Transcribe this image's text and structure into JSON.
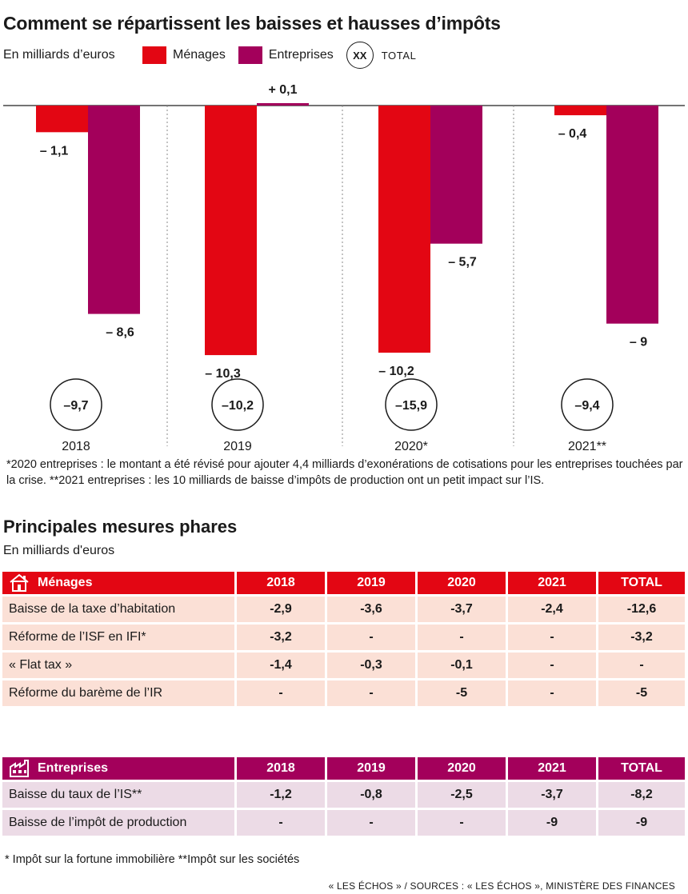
{
  "header": {
    "title": "Comment se répartissent les baisses et hausses d’impôts",
    "unit": "En milliards d’euros",
    "legend_menages": "Ménages",
    "legend_entreprises": "Entreprises",
    "legend_total_badge": "XX",
    "legend_total_label": "TOTAL"
  },
  "colors": {
    "menages": "#e30613",
    "entreprises": "#a3005b",
    "menages_light": "#fbe0d6",
    "entreprises_light": "#ecdbe6"
  },
  "chart_data": {
    "type": "bar",
    "categories": [
      "2018",
      "2019",
      "2020*",
      "2021**"
    ],
    "series": [
      {
        "name": "Ménages",
        "values": [
          -1.1,
          -10.3,
          -10.2,
          -0.4
        ],
        "labels": [
          "– 1,1",
          "– 10,3",
          "– 10,2",
          "– 0,4"
        ]
      },
      {
        "name": "Entreprises",
        "values": [
          -8.6,
          0.1,
          -5.7,
          -9
        ],
        "labels": [
          "– 8,6",
          "+ 0,1",
          "– 5,7",
          "– 9"
        ]
      }
    ],
    "totals": [
      -9.7,
      -10.2,
      -15.9,
      -9.4
    ],
    "total_labels": [
      "–9,7",
      "–10,2",
      "–15,9",
      "–9,4"
    ],
    "title": "Comment se répartissent les baisses et hausses d’impôts",
    "ylabel": "En milliards d’euros",
    "ylim": [
      -10.3,
      0.1
    ],
    "grid": false,
    "legend": "top-left"
  },
  "footnote": "*2020 entreprises : le montant a été révisé pour ajouter 4,4 milliards d’exonérations de cotisations pour les entreprises touchées par la crise. **2021 entreprises : les 10 milliards de baisse d’impôts de production ont un petit impact sur l’IS.",
  "measures": {
    "title": "Principales mesures phares",
    "unit": "En milliards d'euros",
    "menages": {
      "header": [
        "Ménages",
        "2018",
        "2019",
        "2020",
        "2021",
        "TOTAL"
      ],
      "icon": "house-icon",
      "rows": [
        [
          "Baisse de la taxe d’habitation",
          "-2,9",
          "-3,6",
          "-3,7",
          "-2,4",
          "-12,6"
        ],
        [
          "Réforme de l’ISF en IFI*",
          "-3,2",
          "-",
          "-",
          "-",
          "-3,2"
        ],
        [
          "« Flat tax »",
          "-1,4",
          "-0,3",
          "-0,1",
          "-",
          "-"
        ],
        [
          "Réforme du barème de l’IR",
          "-",
          "-",
          "-5",
          "-",
          "-5"
        ]
      ]
    },
    "entreprises": {
      "header": [
        "Entreprises",
        "2018",
        "2019",
        "2020",
        "2021",
        "TOTAL"
      ],
      "icon": "factory-icon",
      "rows": [
        [
          "Baisse du taux de l’IS**",
          "-1,2",
          "-0,8",
          "-2,5",
          "-3,7",
          "-8,2"
        ],
        [
          "Baisse de l’impôt de production",
          "-",
          "-",
          "-",
          "-9",
          "-9"
        ]
      ]
    }
  },
  "notes": "* Impôt sur la fortune immobilière  **Impôt sur les sociétés",
  "source": "« LES ÉCHOS »  / SOURCES : « LES ÉCHOS », MINISTÈRE DES FINANCES"
}
